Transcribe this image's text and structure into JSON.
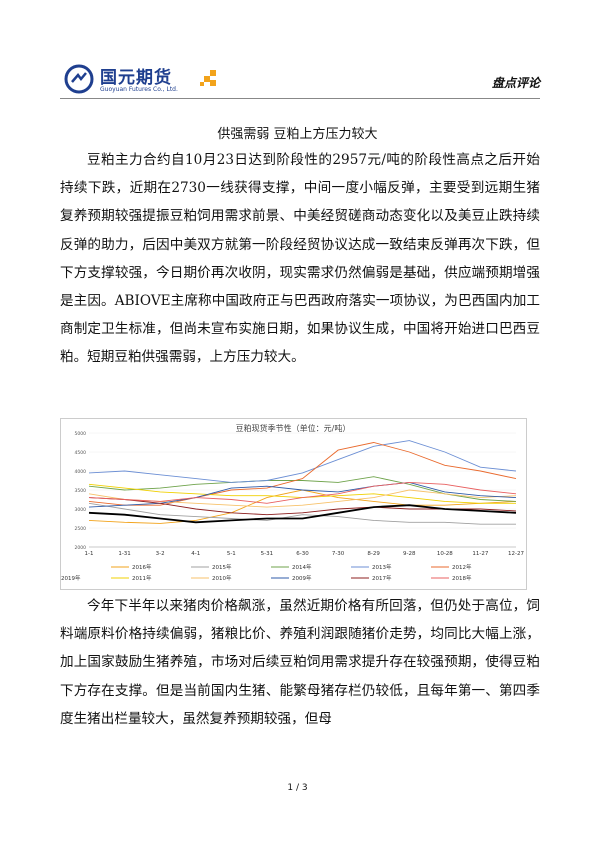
{
  "header": {
    "brand_name": "国元期货",
    "brand_en": "Guoyuan Futures Co., Ltd.",
    "section_label": "盘点评论"
  },
  "title": "供强需弱 豆粕上方压力较大",
  "paragraphs": [
    "豆粕主力合约自10月23日达到阶段性的2957元/吨的阶段性高点之后开始持续下跌，近期在2730一线获得支撑，中间一度小幅反弹，主要受到远期生猪复养预期较强提振豆粕饲用需求前景、中美经贸磋商动态变化以及美豆止跌持续反弹的助力，后因中美双方就第一阶段经贸协议达成一致结束反弹再次下跌，但下方支撑较强，今日期价再次收阴，现实需求仍然偏弱是基础，供应端预期增强是主因。ABIOVE主席称中国政府正与巴西政府落实一项协议，为巴西国内加工商制定卫生标准，但尚未宣布实施日期，如果协议生成，中国将开始进口巴西豆粕。短期豆粕供强需弱，上方压力较大。",
    "今年下半年以来猪肉价格飙涨，虽然近期价格有所回落，但仍处于高位，饲料端原料价格持续偏弱，猪粮比价、养殖利润跟随猪价走势，均同比大幅上涨，加上国家鼓励生猪养殖，市场对后续豆粕饲用需求提升存在较强预期，使得豆粕下方存在支撑。但是当前国内生猪、能繁母猪存栏仍较低，且每年第一、第四季度生猪出栏量较大，虽然复养预期较强，但母"
  ],
  "footer": {
    "page": "1 / 3"
  },
  "chart_data": {
    "type": "line",
    "title": "豆粕现货季节性（单位：元/吨）",
    "categories": [
      "1-1",
      "1-31",
      "3-2",
      "4-1",
      "5-1",
      "5-31",
      "6-30",
      "7-30",
      "8-29",
      "9-28",
      "10-28",
      "11-27",
      "12-27"
    ],
    "yticks": [
      "2000",
      "2500",
      "3000",
      "3500",
      "4000",
      "4500",
      "5000"
    ],
    "ylim": [
      2000,
      5000
    ],
    "series": [
      {
        "name": "2016年",
        "color": "#f2a31b",
        "values": [
          2700,
          2650,
          2620,
          2700,
          2900,
          3300,
          3500,
          3300,
          3200,
          3100,
          3100,
          3150,
          3200
        ]
      },
      {
        "name": "2015年",
        "color": "#a0a0a0",
        "values": [
          3150,
          3000,
          2850,
          2800,
          2750,
          2700,
          2850,
          2800,
          2700,
          2650,
          2650,
          2600,
          2600
        ]
      },
      {
        "name": "2014年",
        "color": "#6fa34b",
        "values": [
          3600,
          3500,
          3550,
          3650,
          3700,
          3750,
          3750,
          3700,
          3850,
          3650,
          3400,
          3250,
          3200
        ]
      },
      {
        "name": "2013年",
        "color": "#6c8fd4",
        "values": [
          3950,
          4000,
          3900,
          3800,
          3700,
          3750,
          3950,
          4300,
          4650,
          4800,
          4500,
          4100,
          4000
        ]
      },
      {
        "name": "2012年",
        "color": "#e96a2e",
        "values": [
          3200,
          3100,
          3100,
          3300,
          3500,
          3550,
          3800,
          4550,
          4750,
          4500,
          4150,
          4000,
          3800
        ]
      },
      {
        "name": "2011年",
        "color": "#f0d000",
        "values": [
          3650,
          3550,
          3450,
          3400,
          3350,
          3350,
          3300,
          3350,
          3400,
          3300,
          3200,
          3150,
          3150
        ]
      },
      {
        "name": "2010年",
        "color": "#f7c26b",
        "values": [
          3400,
          3250,
          3200,
          3150,
          3100,
          3050,
          3100,
          3200,
          3300,
          3500,
          3400,
          3300,
          3350
        ]
      },
      {
        "name": "2009年",
        "color": "#2f5ba8",
        "values": [
          3050,
          3100,
          3150,
          3300,
          3550,
          3600,
          3500,
          3450,
          3600,
          3700,
          3450,
          3350,
          3300
        ]
      },
      {
        "name": "2017年",
        "color": "#8d1f1f",
        "values": [
          3300,
          3250,
          3150,
          3000,
          2900,
          2850,
          2900,
          3000,
          3050,
          3000,
          3000,
          3000,
          2950
        ]
      },
      {
        "name": "2018年",
        "color": "#e86060",
        "values": [
          3300,
          3250,
          3200,
          3300,
          3250,
          3150,
          3300,
          3400,
          3600,
          3700,
          3650,
          3500,
          3400
        ]
      },
      {
        "name": "2019年",
        "color": "#000000",
        "values": [
          2900,
          2850,
          2750,
          2650,
          2700,
          2750,
          2750,
          2900,
          3050,
          3100,
          3000,
          2950,
          2900
        ]
      }
    ]
  }
}
